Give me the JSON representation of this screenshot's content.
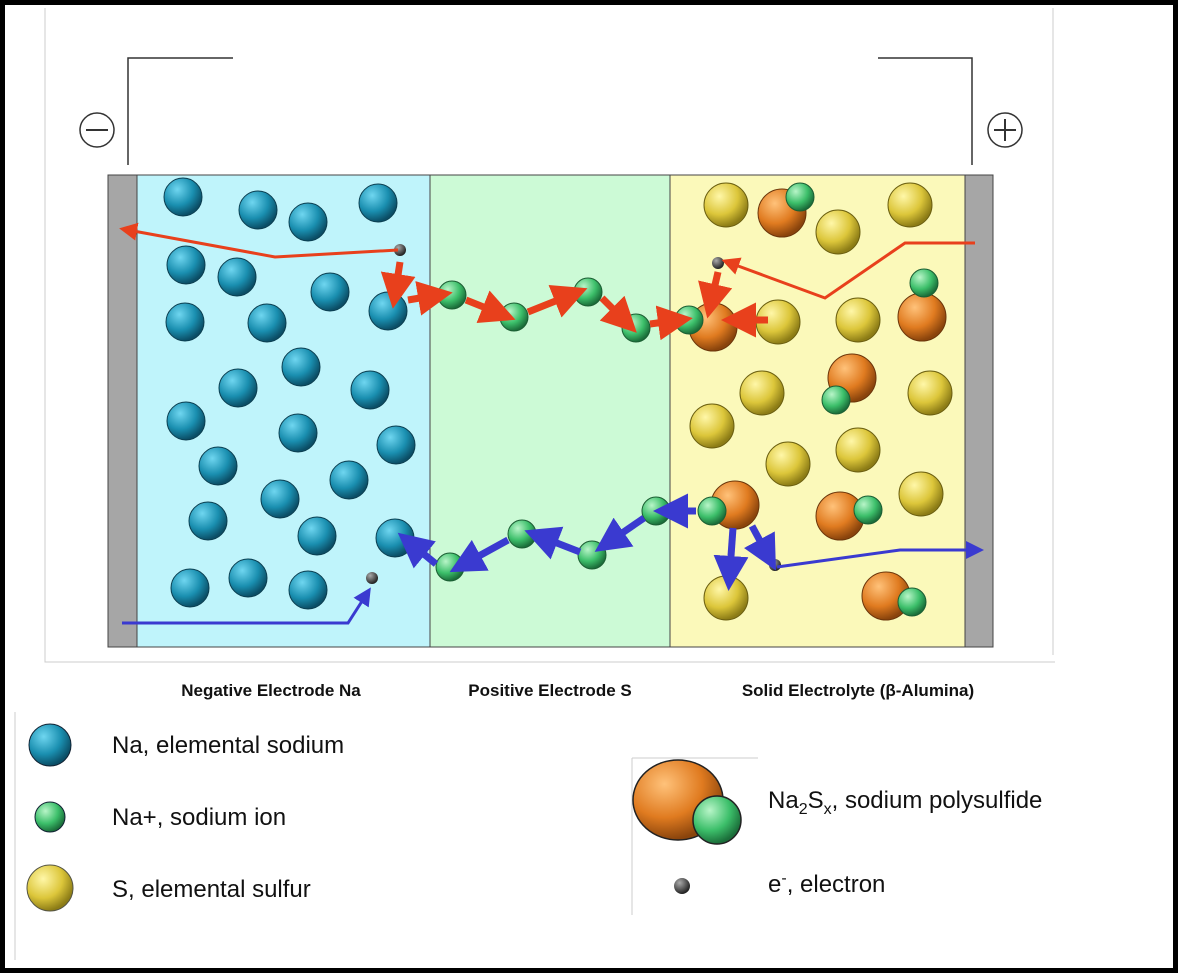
{
  "labels": {
    "negative": "Negative Electrode Na",
    "positive": "Positive Electrode S",
    "electrolyte": "Solid Electrolyte (β-Alumina)"
  },
  "legend": {
    "sodium": "Na, elemental sodium",
    "ion": "Na+, sodium ion",
    "sulfur": "S, elemental sulfur",
    "polysulfide": {
      "parts": [
        "Na",
        "2",
        "S",
        "x",
        ", sodium polysulfide"
      ]
    },
    "electron": {
      "parts": [
        "e",
        "-",
        ", electron"
      ]
    }
  }
}
